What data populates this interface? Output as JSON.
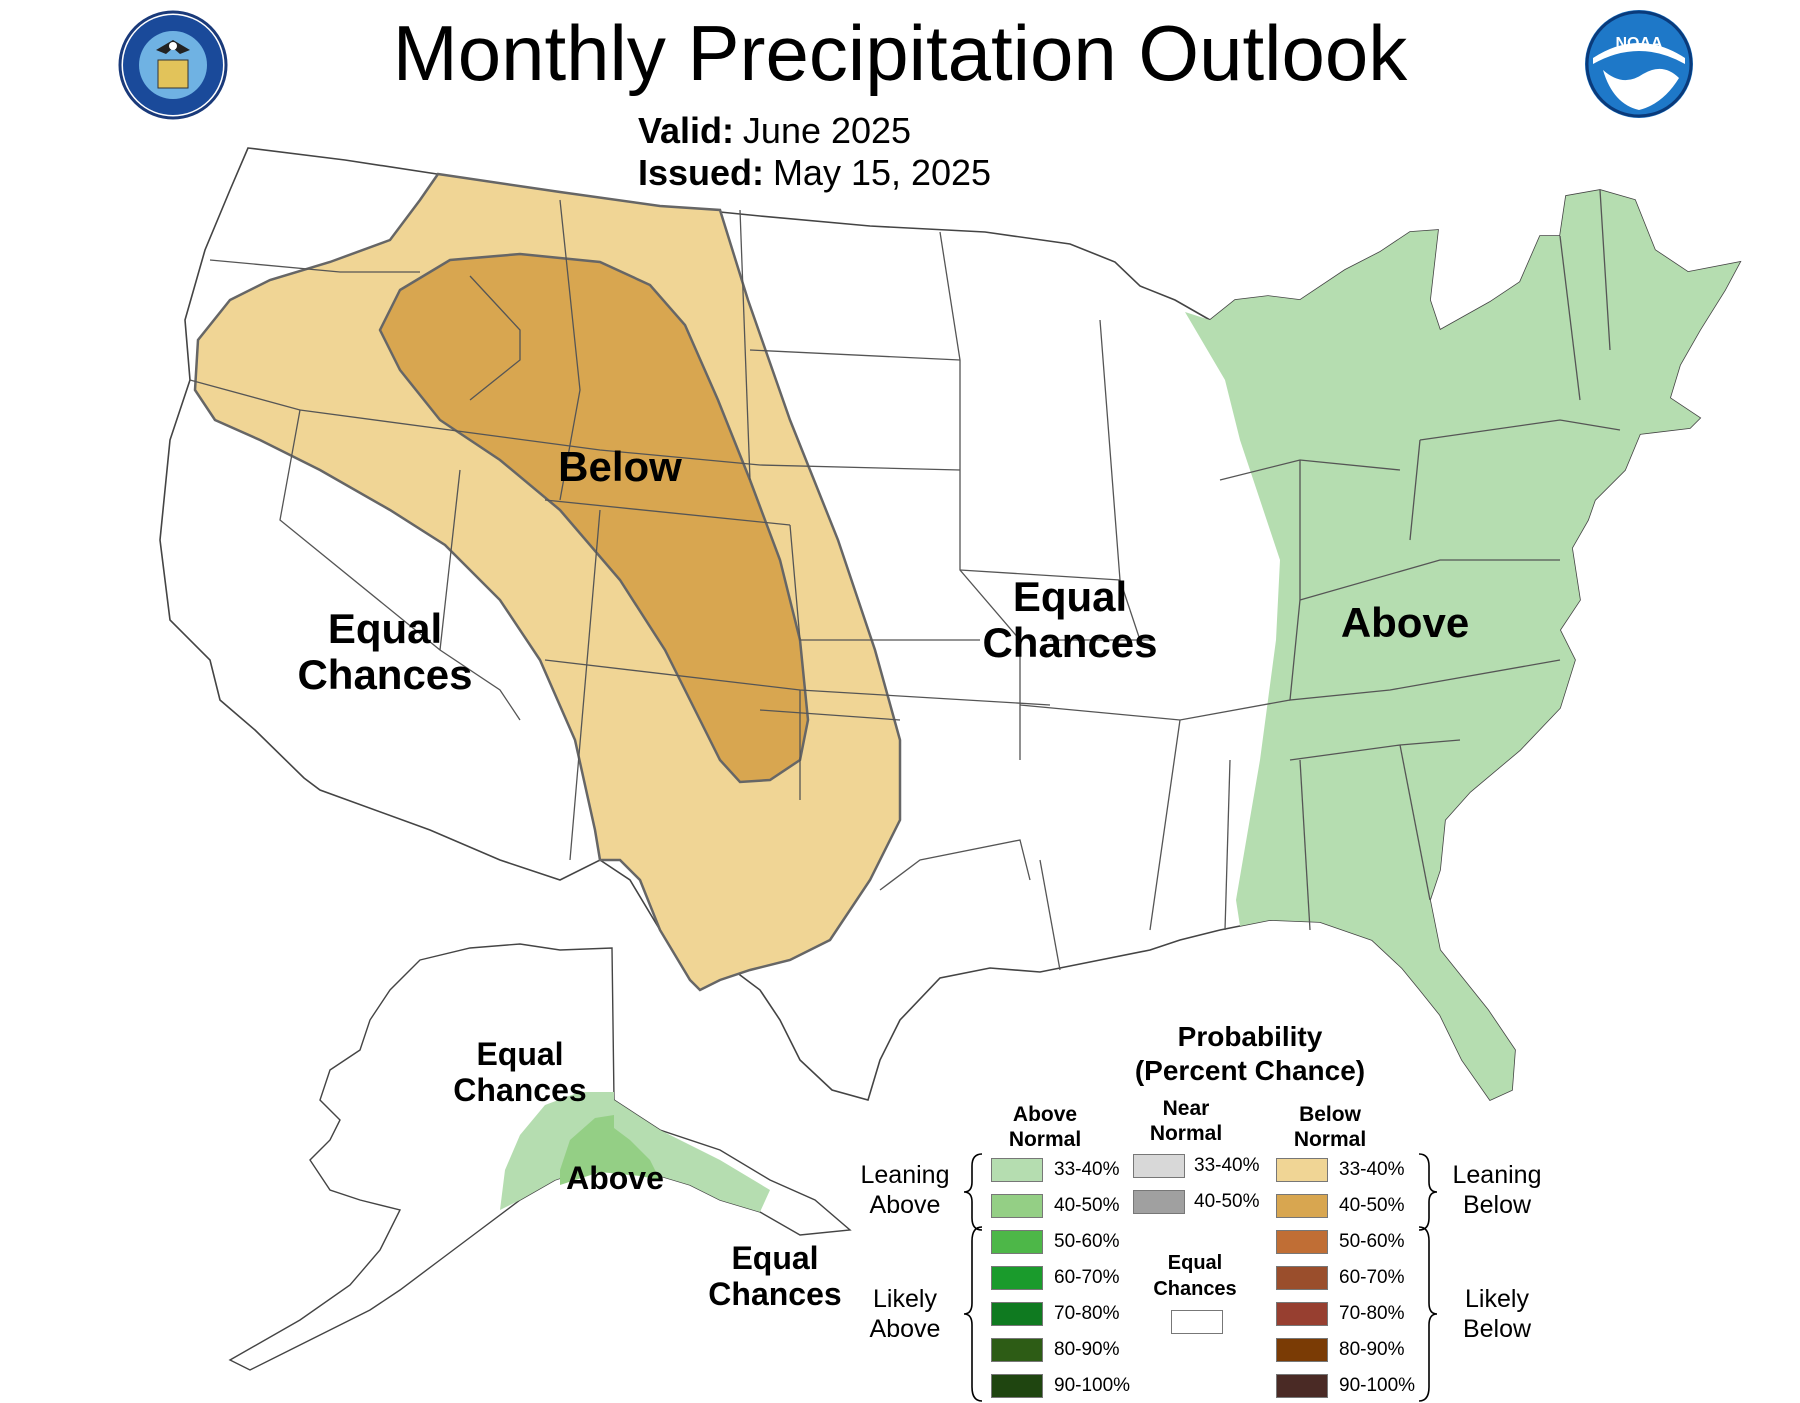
{
  "title": "Monthly Precipitation Outlook",
  "valid_label": "Valid:",
  "valid_value": "June 2025",
  "issued_label": "Issued:",
  "issued_value": "May 15, 2025",
  "logos": {
    "left": "department-of-commerce-seal",
    "left_text": "DEPARTMENT OF COMMERCE · UNITED STATES OF AMERICA",
    "right": "noaa-logo",
    "right_text": "NOAA"
  },
  "regions": {
    "conus_west_below": "Below",
    "conus_west_ec": [
      "Equal",
      "Chances"
    ],
    "conus_central_ec": [
      "Equal",
      "Chances"
    ],
    "conus_east_above": "Above",
    "alaska_ec_north": [
      "Equal",
      "Chances"
    ],
    "alaska_above": "Above",
    "alaska_ec_south": [
      "Equal",
      "Chances"
    ]
  },
  "colors": {
    "above_33_40": "#b5ddb0",
    "above_40_50": "#94cf85",
    "below_33_40": "#f0d595",
    "below_40_50": "#d8a650",
    "outline": "#666666",
    "state_line": "#555555"
  },
  "legend": {
    "title": [
      "Probability",
      "(Percent Chance)"
    ],
    "col_above": [
      "Above",
      "Normal"
    ],
    "col_near": [
      "Near",
      "Normal"
    ],
    "col_below": [
      "Below",
      "Normal"
    ],
    "leaning_above": [
      "Leaning",
      "Above"
    ],
    "likely_above": [
      "Likely",
      "Above"
    ],
    "leaning_below": [
      "Leaning",
      "Below"
    ],
    "likely_below": [
      "Likely",
      "Below"
    ],
    "equal_chances": [
      "Equal",
      "Chances"
    ],
    "above": [
      {
        "label": "33-40%",
        "color": "#b5ddb0"
      },
      {
        "label": "40-50%",
        "color": "#94cf85"
      },
      {
        "label": "50-60%",
        "color": "#4db748"
      },
      {
        "label": "60-70%",
        "color": "#1a9b2c"
      },
      {
        "label": "70-80%",
        "color": "#0f7a20"
      },
      {
        "label": "80-90%",
        "color": "#2d5c15"
      },
      {
        "label": "90-100%",
        "color": "#1f4510"
      }
    ],
    "near": [
      {
        "label": "33-40%",
        "color": "#d8d8d8"
      },
      {
        "label": "40-50%",
        "color": "#a0a0a0"
      }
    ],
    "below": [
      {
        "label": "33-40%",
        "color": "#f0d595"
      },
      {
        "label": "40-50%",
        "color": "#d8a650"
      },
      {
        "label": "50-60%",
        "color": "#c06e35"
      },
      {
        "label": "60-70%",
        "color": "#9a4e2c"
      },
      {
        "label": "70-80%",
        "color": "#973f30"
      },
      {
        "label": "80-90%",
        "color": "#7a3b05"
      },
      {
        "label": "90-100%",
        "color": "#4a2a25"
      }
    ]
  }
}
